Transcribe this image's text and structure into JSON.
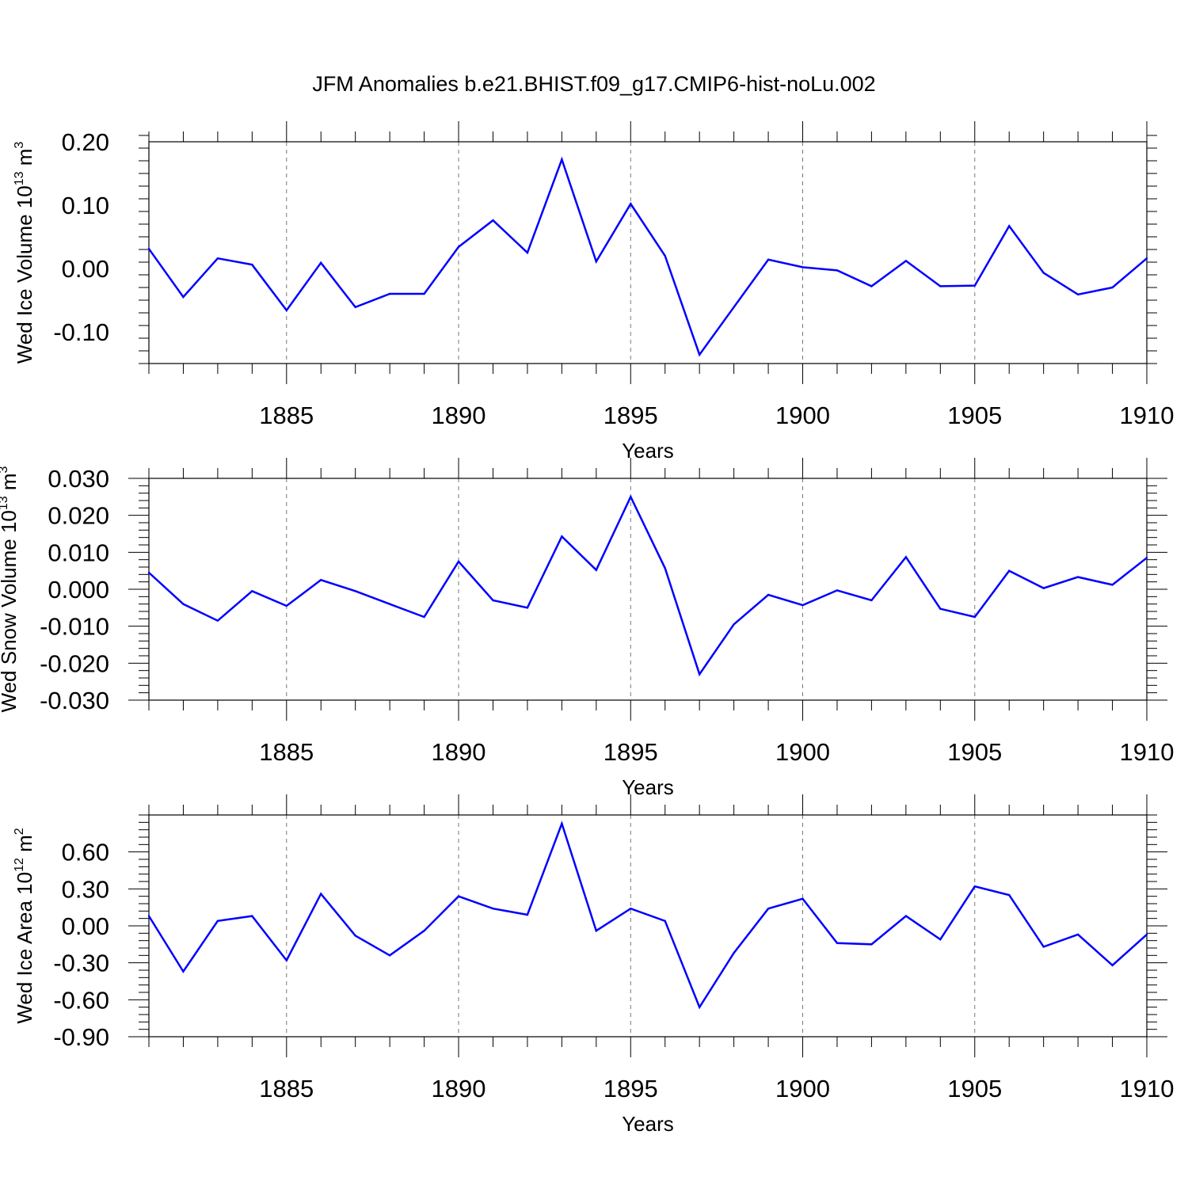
{
  "title": "JFM Anomalies b.e21.BHIST.f09_g17.CMIP6-hist-noLu.002",
  "line_color": "#0000ff",
  "chart_data": [
    {
      "type": "line",
      "id": "ice-volume",
      "ylabel": "Wed Ice Volume 10",
      "ylabel_sup": "13",
      "ylabel_unit": "m",
      "ylabel_unit_sup": "3",
      "xlabel": "Years",
      "xlim": [
        1881,
        1910
      ],
      "ylim": [
        -0.15,
        0.2
      ],
      "yticks": [
        0.2,
        0.1,
        0.0,
        -0.1
      ],
      "ytick_labels": [
        "0.20",
        "0.10",
        "0.00",
        "-0.10"
      ],
      "xticks": [
        1885,
        1890,
        1895,
        1900,
        1905,
        1910
      ],
      "xtick_labels": [
        "1885",
        "1890",
        "1895",
        "1900",
        "1905",
        "1910"
      ],
      "x": [
        1881,
        1882,
        1883,
        1884,
        1885,
        1886,
        1887,
        1888,
        1889,
        1890,
        1891,
        1892,
        1893,
        1894,
        1895,
        1896,
        1897,
        1898,
        1899,
        1900,
        1901,
        1902,
        1903,
        1904,
        1905,
        1906,
        1907,
        1908,
        1909,
        1910
      ],
      "values": [
        0.031,
        -0.045,
        0.016,
        0.006,
        -0.066,
        0.009,
        -0.061,
        -0.04,
        -0.04,
        0.034,
        0.076,
        0.025,
        0.172,
        0.011,
        0.102,
        0.02,
        -0.136,
        -0.061,
        0.014,
        0.002,
        -0.003,
        -0.028,
        0.012,
        -0.028,
        -0.027,
        0.067,
        -0.007,
        -0.041,
        -0.03,
        0.016
      ]
    },
    {
      "type": "line",
      "id": "snow-volume",
      "ylabel": "Wed Snow Volume 10",
      "ylabel_sup": "13",
      "ylabel_unit": "m",
      "ylabel_unit_sup": "3",
      "xlabel": "Years",
      "xlim": [
        1881,
        1910
      ],
      "ylim": [
        -0.03,
        0.03
      ],
      "yticks": [
        0.03,
        0.02,
        0.01,
        0.0,
        -0.01,
        -0.02,
        -0.03
      ],
      "ytick_labels": [
        "0.030",
        "0.020",
        "0.010",
        "0.000",
        "-0.010",
        "-0.020",
        "-0.030"
      ],
      "xticks": [
        1885,
        1890,
        1895,
        1900,
        1905,
        1910
      ],
      "xtick_labels": [
        "1885",
        "1890",
        "1895",
        "1900",
        "1905",
        "1910"
      ],
      "x": [
        1881,
        1882,
        1883,
        1884,
        1885,
        1886,
        1887,
        1888,
        1889,
        1890,
        1891,
        1892,
        1893,
        1894,
        1895,
        1896,
        1897,
        1898,
        1899,
        1900,
        1901,
        1902,
        1903,
        1904,
        1905,
        1906,
        1907,
        1908,
        1909,
        1910
      ],
      "values": [
        0.0045,
        -0.004,
        -0.0085,
        -0.0005,
        -0.0045,
        0.0025,
        -0.0005,
        -0.004,
        -0.0075,
        0.0075,
        -0.003,
        -0.005,
        0.0143,
        0.0052,
        0.025,
        0.0057,
        -0.023,
        -0.0095,
        -0.0015,
        -0.0043,
        -0.0003,
        -0.003,
        0.0087,
        -0.0053,
        -0.0075,
        0.005,
        0.0003,
        0.0033,
        0.0012,
        0.0085
      ]
    },
    {
      "type": "line",
      "id": "ice-area",
      "ylabel": "Wed Ice Area 10",
      "ylabel_sup": "12",
      "ylabel_unit": "m",
      "ylabel_unit_sup": "2",
      "xlabel": "Years",
      "xlim": [
        1881,
        1910
      ],
      "ylim": [
        -0.9,
        0.9
      ],
      "yticks": [
        0.6,
        0.3,
        0.0,
        -0.3,
        -0.6,
        -0.9
      ],
      "ytick_labels": [
        "0.60",
        "0.30",
        "0.00",
        "-0.30",
        "-0.60",
        "-0.90"
      ],
      "xticks": [
        1885,
        1890,
        1895,
        1900,
        1905,
        1910
      ],
      "xtick_labels": [
        "1885",
        "1890",
        "1895",
        "1900",
        "1905",
        "1910"
      ],
      "x": [
        1881,
        1882,
        1883,
        1884,
        1885,
        1886,
        1887,
        1888,
        1889,
        1890,
        1891,
        1892,
        1893,
        1894,
        1895,
        1896,
        1897,
        1898,
        1899,
        1900,
        1901,
        1902,
        1903,
        1904,
        1905,
        1906,
        1907,
        1908,
        1909,
        1910
      ],
      "values": [
        0.08,
        -0.37,
        0.04,
        0.08,
        -0.28,
        0.26,
        -0.08,
        -0.24,
        -0.04,
        0.24,
        0.14,
        0.09,
        0.83,
        -0.04,
        0.14,
        0.04,
        -0.66,
        -0.22,
        0.14,
        0.22,
        -0.14,
        -0.15,
        0.08,
        -0.11,
        0.32,
        0.25,
        -0.17,
        -0.07,
        -0.32,
        -0.07
      ]
    }
  ]
}
